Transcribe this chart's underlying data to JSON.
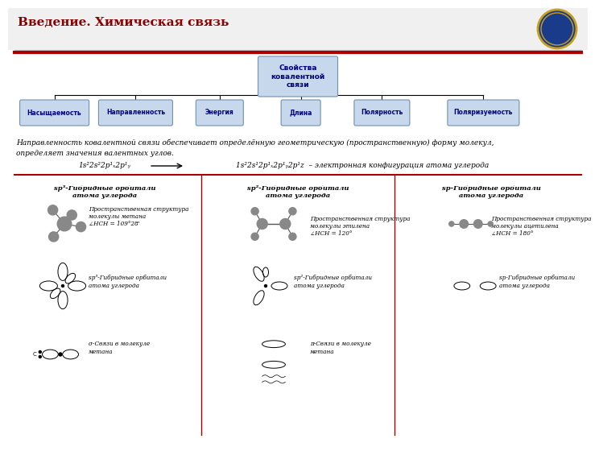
{
  "title": "Введение. Химическая связь",
  "title_color": "#8B0000",
  "title_fontsize": 11,
  "bg_color": "#FFFFFF",
  "header_line_color": "#CC0000",
  "box_top_text": "Свойства\nковалентной\nсвязи",
  "box_color": "#C8D8EC",
  "box_border_color": "#7090B0",
  "leaf_labels": [
    "Насыщаемость",
    "Направленность",
    "Энергия",
    "Длина",
    "Полярность",
    "Поляризуемость"
  ],
  "desc_text1": "Направленность ковалентной связи обеспечивает определённую геометрическую (пространственную) форму молекул,",
  "desc_text2": "определяет значения валентных углов.",
  "formula_left": "1s²2s²2p¹ₓ 2p¹ᵧ",
  "formula_right": "1s²2s¹2p¹ₓ 2p¹ᵧ 2p¹z  – электронная конфигурация атома углерода",
  "section_titles": [
    "sp³-Гибридные орбитали\nатома углерода",
    "sp²-Гибридные орбитали\nатома углерода",
    "sp-Гибридные орбитали\nатома углерода"
  ],
  "mol_labels": [
    "Пространственная структура\nмолекулы метана\n∠НСН = 109°28'",
    "Пространственная структура\nмолекулы этилена\n∠НСН = 120°",
    "Пространственная структура\nмолекулы ацетилена\n∠НСН = 180°"
  ],
  "orbital_labels2": [
    "sp³-Гибридные орбитали\nатома углерода",
    "sp²-Гибридные орбитали\nатома углерода",
    "sp-Гибридные орбитали\nатома углерода"
  ],
  "bond_labels": [
    "σ-Связи в молекуле\nметана",
    "π-Связи в молекуле\nметана",
    ""
  ],
  "separator_color": "#AA0000",
  "text_color_dark": "#000080"
}
